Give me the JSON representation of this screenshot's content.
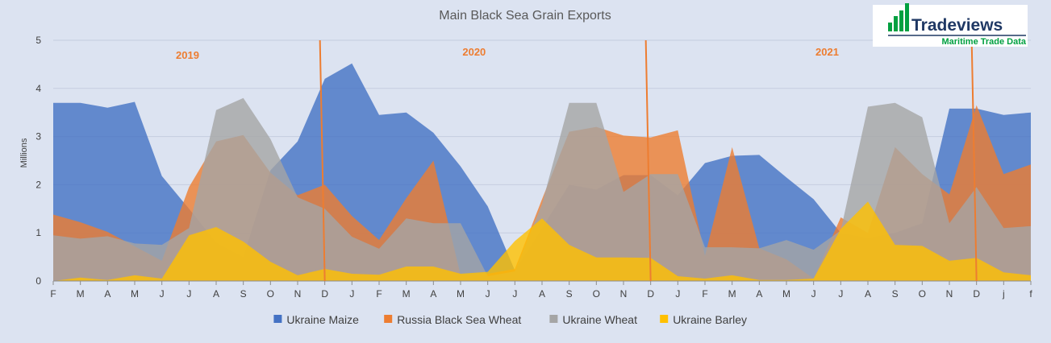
{
  "chart_data": {
    "type": "area",
    "title": "Main Black Sea Grain Exports",
    "ylabel": "Millions",
    "xlabel": "",
    "ylim": [
      0,
      5
    ],
    "y_ticks": [
      "0",
      "1",
      "2",
      "3",
      "4",
      "5"
    ],
    "grid": true,
    "legend_position": "bottom",
    "categories": [
      "F",
      "M",
      "A",
      "M",
      "J",
      "J",
      "A",
      "S",
      "O",
      "N",
      "D",
      "J",
      "F",
      "M",
      "A",
      "M",
      "J",
      "J",
      "A",
      "S",
      "O",
      "N",
      "D",
      "J",
      "F",
      "M",
      "A",
      "M",
      "J",
      "J",
      "A",
      "S",
      "O",
      "N",
      "D",
      "j",
      "f"
    ],
    "year_labels": [
      {
        "label": "2019",
        "x_index": 4.5
      },
      {
        "label": "2020",
        "x_index": 15.5
      },
      {
        "label": "2021",
        "x_index": 28.5
      }
    ],
    "year_separators_after_index": [
      10,
      22,
      34
    ],
    "series": [
      {
        "name": "Ukraine Maize",
        "color": "#4472c4",
        "values": [
          3.7,
          3.7,
          3.6,
          3.72,
          2.18,
          1.5,
          0.8,
          0.5,
          2.3,
          2.9,
          4.2,
          4.52,
          3.45,
          3.5,
          3.08,
          2.38,
          1.55,
          0.22,
          1.1,
          2.0,
          1.9,
          2.2,
          2.2,
          1.78,
          2.45,
          2.6,
          2.62,
          2.15,
          1.7,
          1.0,
          0.9,
          1.0,
          1.2,
          3.58,
          3.58,
          3.45,
          3.5
        ]
      },
      {
        "name": "Russia Black Sea Wheat",
        "color": "#ed7d31",
        "values": [
          1.38,
          1.22,
          1.02,
          0.72,
          0.42,
          1.95,
          2.9,
          3.03,
          2.25,
          1.78,
          2.0,
          1.35,
          0.85,
          1.72,
          2.5,
          0.12,
          0.15,
          0.25,
          1.7,
          3.1,
          3.2,
          3.02,
          2.98,
          3.13,
          0.52,
          2.78,
          0.68,
          0.45,
          0.05,
          1.32,
          1.0,
          2.78,
          2.22,
          1.8,
          3.65,
          2.22,
          2.42
        ]
      },
      {
        "name": "Ukraine Wheat",
        "color": "#a5a5a5",
        "values": [
          0.95,
          0.88,
          0.93,
          0.78,
          0.75,
          1.1,
          3.55,
          3.8,
          2.95,
          1.74,
          1.5,
          0.92,
          0.67,
          1.3,
          1.2,
          1.2,
          0.1,
          0.2,
          1.6,
          3.7,
          3.7,
          1.85,
          2.22,
          2.22,
          0.7,
          0.7,
          0.68,
          0.85,
          0.65,
          1.05,
          3.62,
          3.7,
          3.4,
          1.2,
          1.95,
          1.1,
          1.14
        ]
      },
      {
        "name": "Ukraine Barley",
        "color": "#ffc000",
        "values": [
          0.0,
          0.07,
          0.02,
          0.12,
          0.05,
          0.95,
          1.12,
          0.82,
          0.4,
          0.12,
          0.25,
          0.15,
          0.13,
          0.3,
          0.3,
          0.15,
          0.19,
          0.83,
          1.3,
          0.75,
          0.49,
          0.49,
          0.48,
          0.1,
          0.05,
          0.12,
          0.02,
          0.02,
          0.05,
          1.08,
          1.65,
          0.75,
          0.73,
          0.42,
          0.48,
          0.18,
          0.12
        ]
      }
    ]
  },
  "logo": {
    "name": "Tradeviews",
    "tagline": "Maritime Trade Data"
  }
}
